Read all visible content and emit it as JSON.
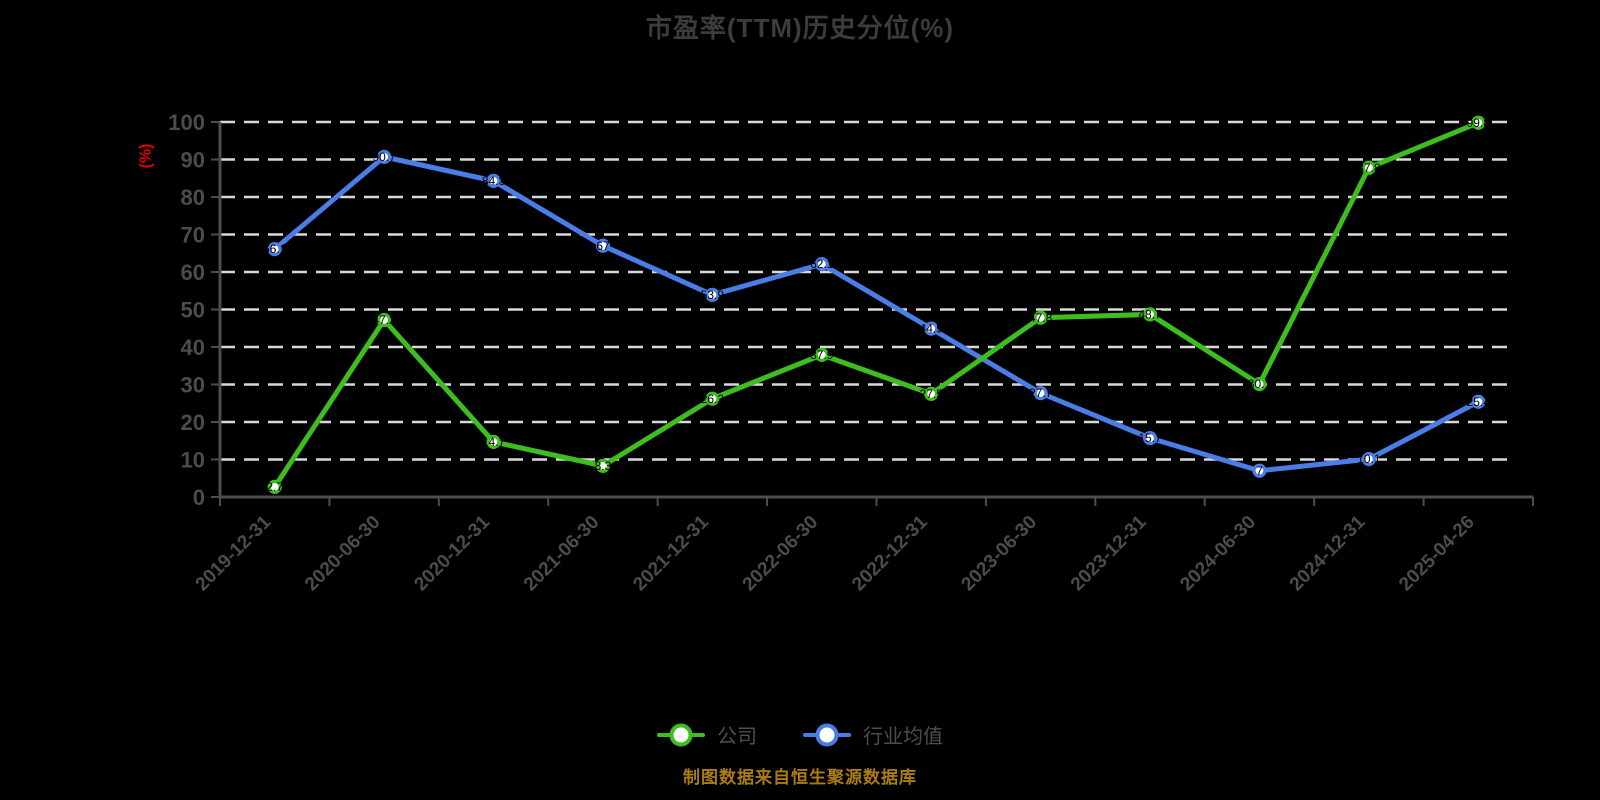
{
  "title": "市盈率(TTM)历史分位(%)",
  "y_axis_unit": "(%)",
  "source_note": "制图数据来自恒生聚源数据库",
  "colors": {
    "background": "#000000",
    "title": "#3c3c3c",
    "axis": "#4d4d4d",
    "tick_label": "#4c4c4c",
    "gridline": "#d9d9d9",
    "y_unit": "#e60000",
    "source_note": "#aa7c15",
    "company_series": "#3dbe1e",
    "industry_series": "#4a7de6"
  },
  "chart_data": {
    "type": "line",
    "title": "市盈率(TTM)历史分位(%)",
    "ylabel": "(%)",
    "ylim": [
      0,
      100
    ],
    "y_ticks": [
      0,
      10,
      20,
      30,
      40,
      50,
      60,
      70,
      80,
      90,
      100
    ],
    "grid": "horizontal-dashed-white",
    "legend_position": "bottom",
    "categories": [
      "2019-12-31",
      "2020-06-30",
      "2020-12-31",
      "2021-06-30",
      "2021-12-31",
      "2022-06-30",
      "2022-12-31",
      "2023-06-30",
      "2023-12-31",
      "2024-06-30",
      "2024-12-31",
      "2025-04-26"
    ],
    "series": [
      {
        "name": "公司",
        "color": "#3dbe1e",
        "values": [
          2.7,
          47.2,
          14.7,
          8.3,
          26.2,
          37.9,
          27.5,
          47.8,
          48.7,
          30.1,
          87.8,
          99.8
        ]
      },
      {
        "name": "行业均值",
        "color": "#4a7de6",
        "values": [
          66.1,
          90.7,
          84.3,
          67.0,
          53.9,
          62.1,
          44.9,
          27.7,
          15.7,
          7.0,
          10.1,
          25.4
        ]
      }
    ]
  }
}
